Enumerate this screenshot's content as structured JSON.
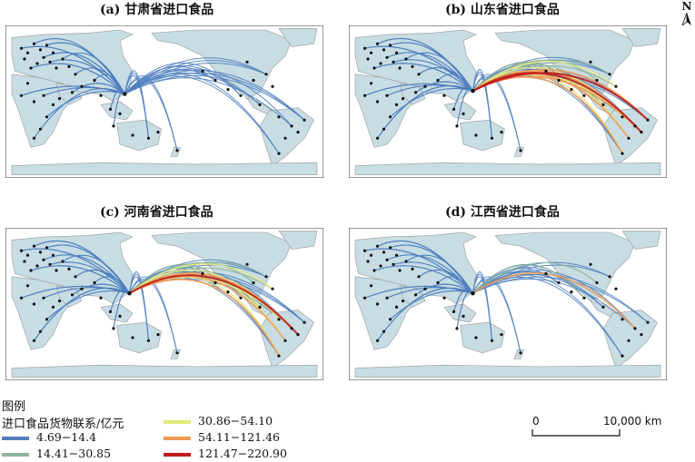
{
  "panels": [
    {
      "title": "(a) 甘肃省进口食品",
      "hub": [
        0.375,
        0.45
      ],
      "arcs": {
        "l1": 58,
        "l2": 0,
        "l3": 0,
        "l4": 0,
        "l5": 0
      }
    },
    {
      "title": "(b) 山东省进口食品",
      "hub": [
        0.39,
        0.43
      ],
      "arcs": {
        "l1": 60,
        "l2": 5,
        "l3": 6,
        "l4": 5,
        "l5": 2
      }
    },
    {
      "title": "(c) 河南省进口食品",
      "hub": [
        0.39,
        0.43
      ],
      "arcs": {
        "l1": 60,
        "l2": 4,
        "l3": 6,
        "l4": 3,
        "l5": 1
      }
    },
    {
      "title": "(d) 江西省进口食品",
      "hub": [
        0.39,
        0.43
      ],
      "arcs": {
        "l1": 55,
        "l2": 2,
        "l3": 0,
        "l4": 1,
        "l5": 0
      }
    }
  ],
  "legend": {
    "title": "图例",
    "subtitle": "进口食品货物联系/亿元",
    "classes": [
      {
        "key": "l1",
        "label": "4.69−14.4",
        "color": "#4f7fbf"
      },
      {
        "key": "l2",
        "label": "14.41−30.85",
        "color": "#8fb49a"
      },
      {
        "key": "l3",
        "label": "30.86−54.10",
        "color": "#e3ea7a"
      },
      {
        "key": "l4",
        "label": "54.11−121.46",
        "color": "#f09a55"
      },
      {
        "key": "l5",
        "label": "121.47−220.90",
        "color": "#c0191b"
      }
    ]
  },
  "north_label": "N",
  "scale": {
    "start": "0",
    "end": "10,000 km"
  },
  "colors": {
    "land": "#c7dce3",
    "border": "#9a9a9a",
    "city": "#111111"
  }
}
